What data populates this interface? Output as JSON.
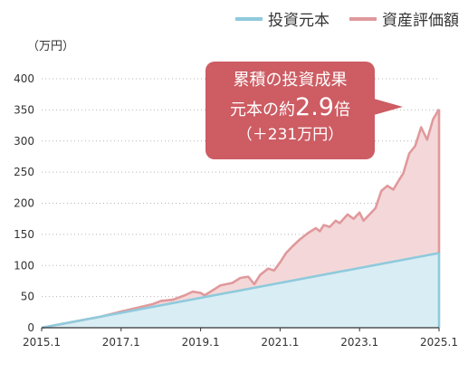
{
  "unit_label": "（万円）",
  "legend": {
    "principal": {
      "label": "投資元本",
      "color": "#8fcadc"
    },
    "assets": {
      "label": "資産評価額",
      "color": "#e0999c"
    }
  },
  "callout": {
    "line1": "累積の投資成果",
    "line2_prefix": "元本の約",
    "line2_value": "2.9",
    "line2_suffix": "倍",
    "line3": "（＋231万円）",
    "color": "#cd5c63"
  },
  "chart_data": {
    "type": "area",
    "xlabel": "",
    "ylabel": "",
    "xlim": [
      2015.0,
      2025.0
    ],
    "ylim": [
      0,
      400
    ],
    "x_ticks": [
      {
        "value": 2015.0,
        "label": "2015.1"
      },
      {
        "value": 2017.0,
        "label": "2017.1"
      },
      {
        "value": 2019.0,
        "label": "2019.1"
      },
      {
        "value": 2021.0,
        "label": "2021.1"
      },
      {
        "value": 2023.0,
        "label": "2023.1"
      },
      {
        "value": 2025.0,
        "label": "2025.1"
      }
    ],
    "y_ticks": [
      0,
      50,
      100,
      150,
      200,
      250,
      300,
      350,
      400
    ],
    "grid": "horizontal-dotted",
    "legend_position": "top-right",
    "series": [
      {
        "name": "投資元本",
        "color": "#8fcadc",
        "fill": "#d9edf4",
        "x": [
          2015.0,
          2025.0
        ],
        "y": [
          0,
          120
        ]
      },
      {
        "name": "資産評価額",
        "color": "#e0999c",
        "fill": "#f4d8d9",
        "x": [
          2015.0,
          2016.5,
          2017.0,
          2017.4,
          2017.8,
          2018.0,
          2018.3,
          2018.6,
          2018.8,
          2019.0,
          2019.1,
          2019.3,
          2019.5,
          2019.8,
          2020.0,
          2020.2,
          2020.35,
          2020.5,
          2020.7,
          2020.85,
          2021.0,
          2021.15,
          2021.3,
          2021.5,
          2021.7,
          2021.9,
          2022.0,
          2022.1,
          2022.25,
          2022.4,
          2022.5,
          2022.7,
          2022.85,
          2023.0,
          2023.1,
          2023.25,
          2023.4,
          2023.55,
          2023.7,
          2023.85,
          2024.0,
          2024.1,
          2024.25,
          2024.4,
          2024.55,
          2024.7,
          2024.85,
          2025.0
        ],
        "y": [
          0,
          18,
          26,
          32,
          38,
          43,
          45,
          52,
          58,
          56,
          52,
          60,
          68,
          72,
          80,
          82,
          70,
          85,
          95,
          92,
          105,
          120,
          130,
          142,
          152,
          160,
          155,
          165,
          162,
          172,
          168,
          182,
          175,
          185,
          172,
          182,
          192,
          220,
          228,
          222,
          238,
          248,
          280,
          292,
          322,
          302,
          335,
          351
        ]
      }
    ]
  }
}
